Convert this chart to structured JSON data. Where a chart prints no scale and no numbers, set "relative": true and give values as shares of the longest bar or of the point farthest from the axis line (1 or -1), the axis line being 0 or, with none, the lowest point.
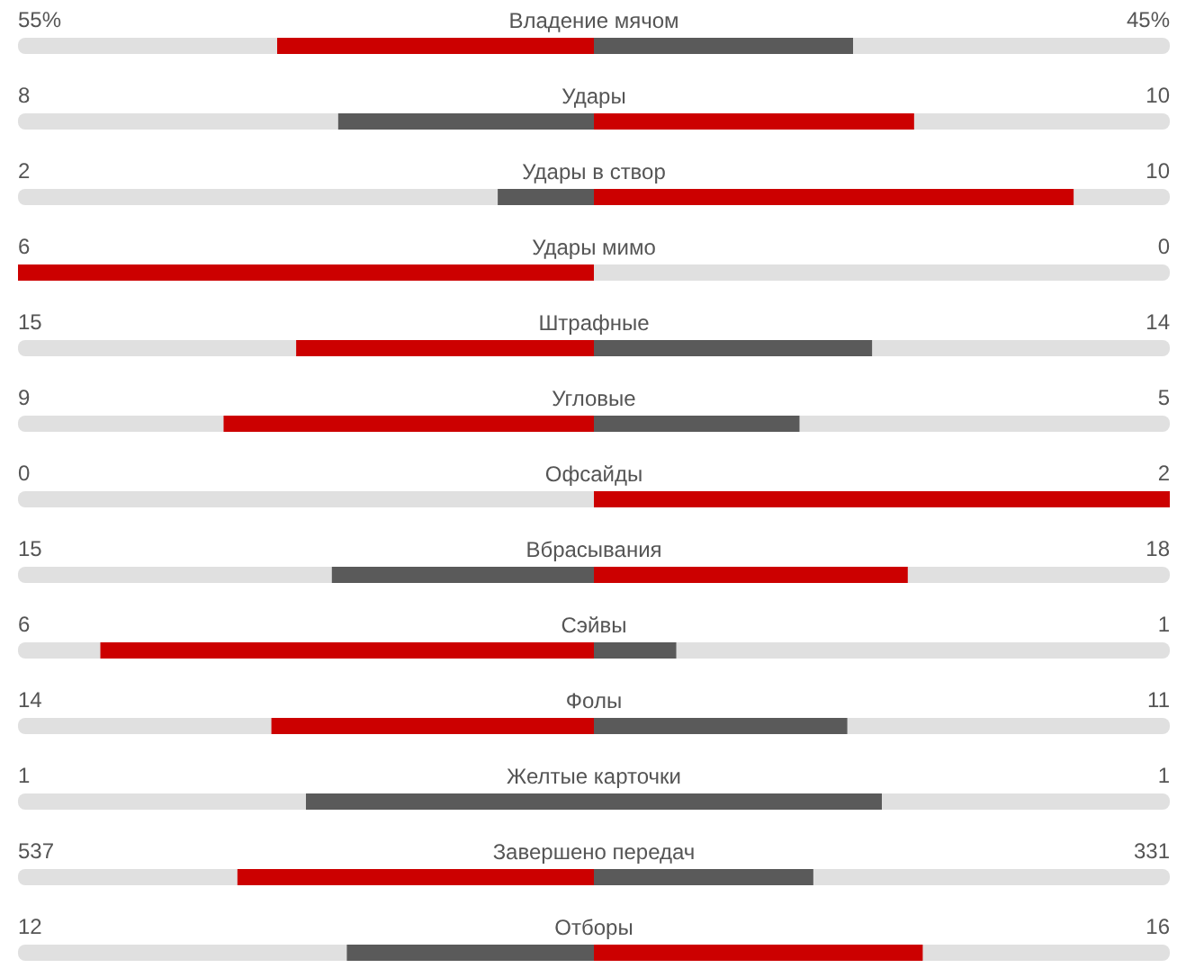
{
  "chart_data": {
    "type": "bar",
    "orientation": "horizontal",
    "stacked": true,
    "relative": true,
    "tick_labels": "y",
    "categories": [
      "Владение мячом",
      "Удары",
      "Удары в створ",
      "Удары мимо",
      "Штрафные",
      "Угловые",
      "Офсайды",
      "Вбрасывания",
      "Сэйвы",
      "Фолы",
      "Желтые карточки",
      "Завершено передач",
      "Отборы"
    ],
    "series": [
      {
        "values": [
          -0.55,
          -0.444,
          -0.167,
          -1,
          -0.517,
          -0.643,
          0,
          -0.455,
          -0.857,
          -0.56,
          -0.5,
          -0.619,
          -0.429
        ],
        "colors": [
          "#cc0000",
          "#5a5a5a",
          "#5a5a5a",
          "#cc0000",
          "#cc0000",
          "#cc0000",
          "#5a5a5a",
          "#5a5a5a",
          "#cc0000",
          "#cc0000",
          "#5a5a5a",
          "#cc0000",
          "#5a5a5a"
        ]
      },
      {
        "values": [
          0.45,
          0.556,
          0.833,
          0,
          0.483,
          0.357,
          1,
          0.545,
          0.143,
          0.44,
          0.5,
          0.381,
          0.571
        ],
        "colors": [
          "#5a5a5a",
          "#cc0000",
          "#cc0000",
          "#5a5a5a",
          "#5a5a5a",
          "#5a5a5a",
          "#cc0000",
          "#cc0000",
          "#5a5a5a",
          "#5a5a5a",
          "#5a5a5a",
          "#5a5a5a",
          "#cc0000"
        ]
      }
    ],
    "annotations": [
      "55%",
      "45%",
      "8",
      "10",
      "2",
      "10",
      "6",
      "0",
      "15",
      "14",
      "9",
      "5",
      "0",
      "2",
      "15",
      "18",
      "6",
      "1",
      "14",
      "11",
      "1",
      "1",
      "537",
      "331",
      "12",
      "16"
    ]
  }
}
